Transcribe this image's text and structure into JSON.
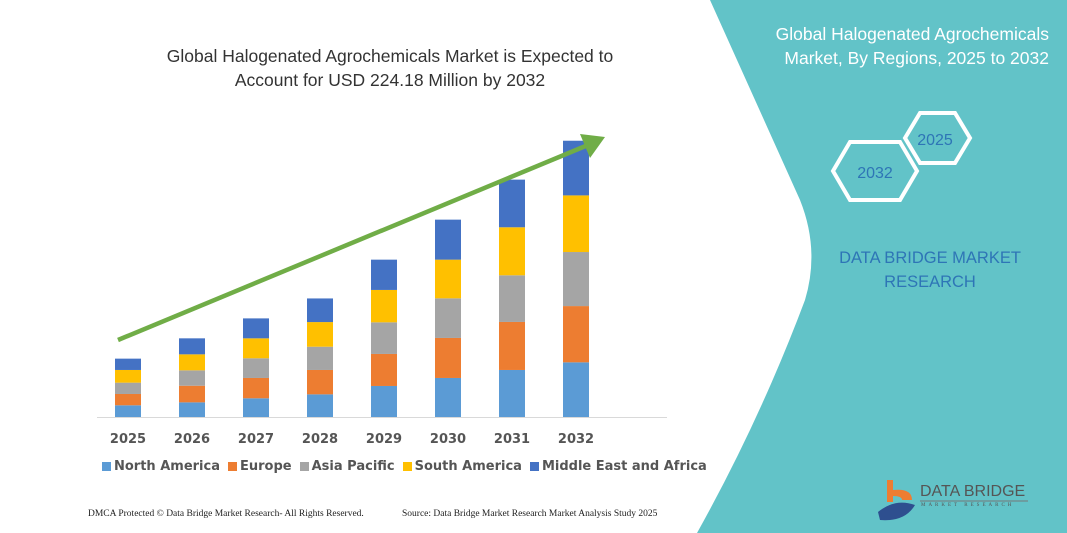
{
  "chart_data": {
    "type": "bar",
    "stacked": true,
    "title": "Global Halogenated Agrochemicals Market is Expected to Account for USD 224.18 Million by 2032",
    "categories": [
      "2025",
      "2026",
      "2027",
      "2028",
      "2029",
      "2030",
      "2031",
      "2032"
    ],
    "series": [
      {
        "name": "North America",
        "color": "#5b9bd5",
        "values": [
          9.5,
          11.9,
          15.2,
          18.4,
          25.2,
          31.7,
          38.2,
          44.4
        ]
      },
      {
        "name": "Europe",
        "color": "#ed7d31",
        "values": [
          9.2,
          13.5,
          16.5,
          19.8,
          26.0,
          32.5,
          39.0,
          45.7
        ]
      },
      {
        "name": "Asia Pacific",
        "color": "#a5a5a5",
        "values": [
          9.2,
          12.5,
          16.0,
          18.9,
          25.7,
          32.2,
          37.9,
          43.9
        ]
      },
      {
        "name": "South America",
        "color": "#ffc000",
        "values": [
          10.3,
          13.0,
          16.2,
          20.0,
          26.3,
          31.4,
          39.0,
          46.0
        ]
      },
      {
        "name": "Middle East and Africa",
        "color": "#4472c4",
        "values": [
          9.2,
          13.0,
          16.2,
          19.2,
          24.6,
          32.5,
          38.7,
          44.4
        ]
      }
    ],
    "ylim": [
      0,
      224.18
    ],
    "grid": false,
    "legend_placement": "bottom",
    "trend_arrow_color": "#70ad47"
  },
  "header": {
    "title_line1": "Global Halogenated Agrochemicals Market is Expected to",
    "title_line2": "Account for USD 224.18 Million by 2032"
  },
  "side_panel": {
    "color": "#62c3c8",
    "title_line1": "Global Halogenated Agrochemicals",
    "title_line2": "Market, By Regions, 2025 to 2032",
    "hex_start": "2025",
    "hex_end": "2032",
    "brand_line1": "DATA BRIDGE MARKET",
    "brand_line2": "RESEARCH",
    "logo_text": "DATA BRIDGE",
    "logo_sub": "MARKET RESEARCH"
  },
  "footer": {
    "left": "DMCA Protected © Data Bridge Market Research- All Rights Reserved.",
    "right": "Source: Data Bridge Market Research  Market Analysis Study 2025"
  }
}
